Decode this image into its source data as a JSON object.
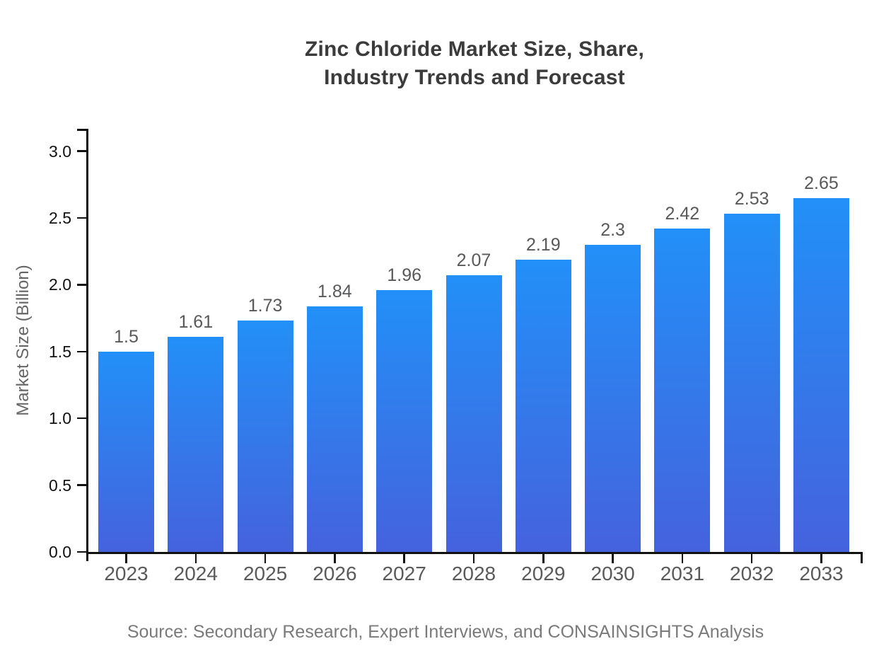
{
  "title": {
    "line1": "Zinc Chloride Market Size, Share,",
    "line2": "Industry Trends and Forecast"
  },
  "source_note": "Source: Secondary Research, Expert Interviews, and CONSAINSIGHTS Analysis",
  "chart_data": {
    "type": "bar",
    "title": "Zinc Chloride Market Size, Share, Industry Trends and Forecast",
    "xlabel": "",
    "ylabel": "Market Size (Billion)",
    "categories": [
      "2023",
      "2024",
      "2025",
      "2026",
      "2027",
      "2028",
      "2029",
      "2030",
      "2031",
      "2032",
      "2033"
    ],
    "values": [
      1.5,
      1.61,
      1.73,
      1.84,
      1.96,
      2.07,
      2.19,
      2.3,
      2.42,
      2.53,
      2.65
    ],
    "value_labels": [
      "1.5",
      "1.61",
      "1.73",
      "1.84",
      "1.96",
      "2.07",
      "2.19",
      "2.3",
      "2.42",
      "2.53",
      "2.65"
    ],
    "ylim": [
      0,
      3.0
    ],
    "yticks": [
      0.0,
      0.5,
      1.0,
      1.5,
      2.0,
      2.5,
      3.0
    ],
    "ytick_labels": [
      "0.0",
      "0.5",
      "1.0",
      "1.5",
      "2.0",
      "2.5",
      "3.0"
    ],
    "grid": false,
    "legend": false,
    "colors": {
      "bar_gradient_top": "#2290f8",
      "bar_gradient_bottom": "#4562dd",
      "axis": "#111111",
      "ytick_label": "#111111",
      "xtick_label": "#5a5a5a",
      "value_label": "#58595b",
      "axis_title": "#666666",
      "chart_title": "#3b3b3b",
      "source": "#7a7a7a",
      "background": "#ffffff"
    }
  }
}
